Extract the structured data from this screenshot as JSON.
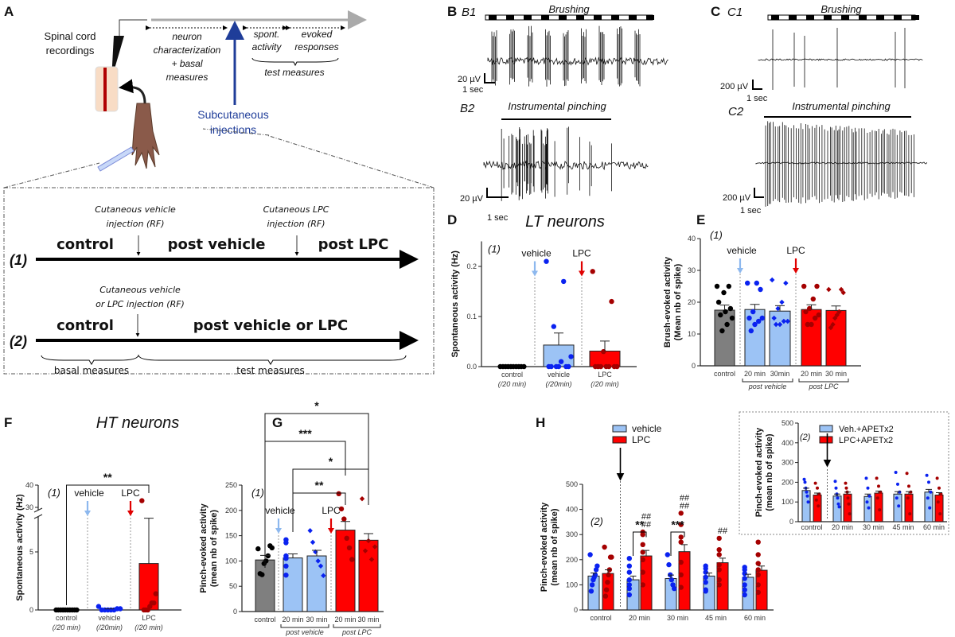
{
  "panel_labels": {
    "A": "A",
    "B": "B",
    "C": "C",
    "D": "D",
    "E": "E",
    "F": "F",
    "G": "G",
    "H": "H"
  },
  "schematic": {
    "recording_label": [
      "Spinal cord",
      "recordings"
    ],
    "neuron_char": [
      "neuron",
      "characterization",
      "+ basal",
      "measures"
    ],
    "spont": [
      "spont.",
      "activity"
    ],
    "evoked": [
      "evoked",
      "responses"
    ],
    "test_measures_top": "test measures",
    "injection_label": [
      "Subcutaneous",
      "injections"
    ],
    "protocol1": {
      "id": "(1)",
      "inj1": [
        "Cutaneous vehicle",
        "injection (RF)"
      ],
      "inj2": [
        "Cutaneous LPC",
        "injection (RF)"
      ],
      "phases": [
        "control",
        "post vehicle",
        "post LPC"
      ]
    },
    "protocol2": {
      "id": "(2)",
      "inj": [
        "Cutaneous vehicle",
        "or LPC injection (RF)"
      ],
      "phases": [
        "control",
        "post vehicle or LPC"
      ],
      "basal": "basal measures",
      "test": "test measures"
    },
    "blue": "#1f3d99"
  },
  "traces": {
    "B1": {
      "label": "B1",
      "stimulus": "Brushing",
      "scale_v": "20 µV",
      "scale_t": "1 sec"
    },
    "B2": {
      "label": "B2",
      "stimulus": "Instrumental pinching",
      "scale_v": "20 µV",
      "scale_t": "1 sec"
    },
    "C1": {
      "label": "C1",
      "stimulus": "Brushing",
      "scale_v": "200 µV",
      "scale_t": "1 sec"
    },
    "C2": {
      "label": "C2",
      "stimulus": "Instrumental pinching",
      "scale_v": "200 µV",
      "scale_t": "1 sec"
    }
  },
  "colors": {
    "control_bar": "#7f7f7f",
    "control_dot": "#000000",
    "vehicle_bar": "#9cc3f5",
    "vehicle_dot": "#0a22f0",
    "lpc_bar": "#ff0000",
    "lpc_dot": "#a50000",
    "vehicle_arrow": "#8db8ee",
    "lpc_arrow": "#e00000"
  },
  "chart_data": [
    {
      "panel": "D",
      "type": "bar",
      "title": "LT neurons",
      "protocol": "(1)",
      "ylabel": "Spontaneous activity (Hz)",
      "ylim": [
        0,
        0.25
      ],
      "yticks": [
        0,
        0.1,
        0.2
      ],
      "ytick_labels": [
        "0.0",
        "0.1",
        "0.2"
      ],
      "categories": [
        "control",
        "vehicle",
        "LPC"
      ],
      "sublabels": [
        "(/20 min)",
        "(/20min)",
        "(/20 min)"
      ],
      "values": [
        0,
        0.043,
        0.031
      ],
      "errors": [
        0,
        0.024,
        0.02
      ],
      "points": [
        [
          0,
          0,
          0,
          0,
          0,
          0,
          0,
          0,
          0,
          0
        ],
        [
          0.21,
          0.17,
          0.08,
          0.02,
          0.01,
          0,
          0,
          0,
          0,
          0,
          0
        ],
        [
          0.19,
          0.13,
          0.03,
          0,
          0,
          0,
          0,
          0,
          0,
          0
        ]
      ],
      "markers": [
        "vehicle",
        "LPC"
      ]
    },
    {
      "panel": "E",
      "type": "bar",
      "protocol": "(1)",
      "ylabel": [
        "Brush-evoked activity",
        "(Mean nb of spike)"
      ],
      "ylim": [
        0,
        40
      ],
      "yticks": [
        0,
        10,
        20,
        30,
        40
      ],
      "ytick_labels": [
        "0",
        "10",
        "20",
        "30",
        "40"
      ],
      "categories": [
        "control",
        "20 min",
        "30min",
        "20 min",
        "30 min"
      ],
      "groups": [
        {
          "label": "post vehicle",
          "from": 1,
          "to": 2
        },
        {
          "label": "post LPC",
          "from": 3,
          "to": 4
        }
      ],
      "values": [
        17.5,
        17.7,
        17.2,
        17.7,
        17.4
      ],
      "errors": [
        1.6,
        1.6,
        1.7,
        1.5,
        1.4
      ],
      "points": [
        [
          25,
          25,
          23,
          20,
          18,
          17,
          16,
          15,
          13,
          11
        ],
        [
          26,
          24,
          26,
          17,
          15,
          15,
          14,
          13,
          11
        ],
        [
          27,
          26,
          20,
          18,
          15,
          14,
          14,
          13,
          13
        ],
        [
          25,
          25,
          21,
          18,
          17,
          16,
          15,
          13,
          13
        ],
        [
          24,
          23,
          24,
          17,
          16,
          15,
          13,
          12
        ]
      ],
      "markers": [
        "vehicle",
        "LPC"
      ]
    },
    {
      "panel": "F",
      "type": "bar",
      "title": "HT neurons",
      "protocol": "(1)",
      "ylabel": "Spontaneous activity (Hz)",
      "ylim": [
        0,
        40
      ],
      "axis_break": [
        8,
        28
      ],
      "yticks": [
        0,
        5,
        30,
        40
      ],
      "ytick_labels": [
        "0",
        "5",
        "30",
        "40"
      ],
      "categories": [
        "control",
        "vehicle",
        "LPC"
      ],
      "sublabels": [
        "(/20 min)",
        "(/20min)",
        "(/20 min)"
      ],
      "values": [
        0,
        0.05,
        4.0
      ],
      "errors": [
        0,
        0.04,
        3.9
      ],
      "points": [
        [
          0,
          0,
          0,
          0,
          0,
          0,
          0,
          0,
          0,
          0
        ],
        [
          0.3,
          0.1,
          0.1,
          0,
          0,
          0,
          0,
          0
        ],
        [
          33,
          1.4,
          0.6,
          0.6,
          0.3,
          0,
          0,
          0
        ]
      ],
      "markers": [
        "vehicle",
        "LPC"
      ],
      "significance": [
        {
          "label": "**",
          "from": 0,
          "to": 2
        }
      ]
    },
    {
      "panel": "G",
      "type": "bar",
      "protocol": "(1)",
      "ylabel": [
        "Pinch-evoked activity",
        "(mean nb of spike)"
      ],
      "ylim": [
        0,
        250
      ],
      "yticks": [
        0,
        50,
        100,
        150,
        200,
        250
      ],
      "ytick_labels": [
        "0",
        "50",
        "100",
        "150",
        "200",
        "250"
      ],
      "categories": [
        "control",
        "20 min",
        "30 min",
        "20 min",
        "30 min"
      ],
      "groups": [
        {
          "label": "post vehicle",
          "from": 1,
          "to": 2
        },
        {
          "label": "post LPC",
          "from": 3,
          "to": 4
        }
      ],
      "values": [
        102,
        106,
        110,
        161,
        141
      ],
      "errors": [
        9,
        8,
        11,
        17,
        13
      ],
      "points": [
        [
          124,
          126,
          130,
          110,
          100,
          95,
          73,
          75
        ],
        [
          142,
          136,
          110,
          105,
          106,
          90,
          72
        ],
        [
          160,
          137,
          118,
          100,
          90,
          71
        ],
        [
          233,
          203,
          183,
          145,
          126,
          103
        ],
        [
          223,
          140,
          128,
          120,
          103
        ]
      ],
      "markers": [
        "vehicle",
        "LPC"
      ],
      "significance": [
        {
          "label": "*",
          "from": 0,
          "to": 4
        },
        {
          "label": "***",
          "from": 0,
          "to": 3
        },
        {
          "label": "*",
          "from": 1,
          "to": 4
        },
        {
          "label": "**",
          "from": 1,
          "to": 3
        }
      ]
    },
    {
      "panel": "H",
      "type": "bar",
      "protocol": "(2)",
      "ylabel": [
        "Pinch-evoked activity",
        "(mean nb of spike)"
      ],
      "ylim": [
        0,
        500
      ],
      "yticks": [
        0,
        100,
        200,
        300,
        400,
        500
      ],
      "ytick_labels": [
        "0",
        "100",
        "200",
        "300",
        "400",
        "500"
      ],
      "categories": [
        "control",
        "20 min",
        "30 min",
        "45 min",
        "60 min"
      ],
      "legend": "top-left",
      "series": [
        {
          "name": "vehicle",
          "values": [
            135,
            120,
            125,
            135,
            130
          ],
          "errors": [
            12,
            15,
            14,
            12,
            12
          ],
          "points": [
            [
              220,
              175,
              160,
              140,
              130,
              120,
              100,
              75
            ],
            [
              205,
              175,
              150,
              120,
              100,
              85,
              60
            ],
            [
              220,
              180,
              140,
              120,
              100,
              85
            ],
            [
              175,
              165,
              150,
              130,
              110,
              80,
              75
            ],
            [
              170,
              160,
              145,
              125,
              100,
              80,
              60
            ]
          ]
        },
        {
          "name": "LPC",
          "values": [
            145,
            215,
            232,
            188,
            158
          ],
          "errors": [
            15,
            22,
            28,
            18,
            17
          ],
          "points": [
            [
              250,
              210,
              210,
              160,
              140,
              110,
              80,
              55
            ],
            [
              310,
              300,
              260,
              230,
              200,
              150,
              100
            ],
            [
              385,
              340,
              290,
              270,
              190,
              140,
              90
            ],
            [
              285,
              240,
              220,
              180,
              160,
              120,
              100
            ],
            [
              270,
              220,
              185,
              160,
              140,
              100,
              70
            ]
          ]
        }
      ],
      "significance": [
        {
          "label": "**",
          "category": 1
        },
        {
          "label": "***",
          "category": 2
        }
      ],
      "hash_marks": [
        {
          "category": 1,
          "label": [
            "##",
            "##"
          ]
        },
        {
          "category": 2,
          "label": [
            "##",
            "##"
          ]
        },
        {
          "category": 3,
          "label": [
            "##"
          ]
        }
      ]
    },
    {
      "panel": "H-inset",
      "type": "bar",
      "protocol": "(2)",
      "ylabel": [
        "Pinch-evoked activity",
        "(mean nb of spike)"
      ],
      "ylim": [
        0,
        500
      ],
      "yticks": [
        0,
        100,
        200,
        300,
        400,
        500
      ],
      "ytick_labels": [
        "0",
        "100",
        "200",
        "300",
        "400",
        "500"
      ],
      "categories": [
        "control",
        "20 min",
        "30 min",
        "45 min",
        "60 min"
      ],
      "legend": "top-left",
      "series": [
        {
          "name": "Veh.+APETx2",
          "values": [
            158,
            130,
            128,
            140,
            150
          ],
          "errors": [
            12,
            10,
            12,
            12,
            14
          ],
          "points": [
            [
              215,
              200,
              170,
              150,
              130,
              100
            ],
            [
              205,
              170,
              140,
              120,
              90,
              75
            ],
            [
              220,
              170,
              130,
              100,
              70
            ],
            [
              250,
              190,
              150,
              120,
              80
            ],
            [
              235,
              200,
              150,
              120,
              70
            ]
          ]
        },
        {
          "name": "LPC+APETx2",
          "values": [
            135,
            140,
            145,
            140,
            135
          ],
          "errors": [
            10,
            10,
            10,
            12,
            12
          ],
          "points": [
            [
              195,
              170,
              140,
              110,
              80
            ],
            [
              195,
              170,
              150,
              120,
              90,
              40
            ],
            [
              220,
              180,
              150,
              120,
              60
            ],
            [
              245,
              180,
              150,
              120,
              40
            ],
            [
              220,
              170,
              140,
              100,
              40
            ]
          ]
        }
      ]
    }
  ]
}
